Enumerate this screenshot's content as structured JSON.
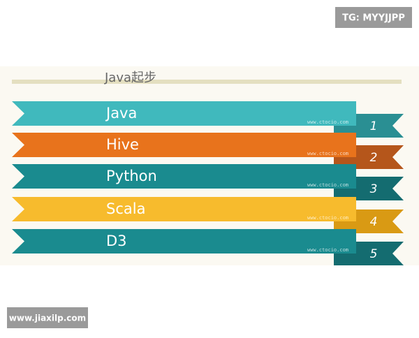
{
  "header": {
    "badge": "TG: MYYJJPP"
  },
  "diagram": {
    "title": "Java起步",
    "watermark": "www.ctocio.com",
    "items": [
      {
        "label": "Java",
        "number": "1",
        "color": "#40b9bd",
        "tab_color": "#2a8f93"
      },
      {
        "label": "Hive",
        "number": "2",
        "color": "#e8731c",
        "tab_color": "#b5561b"
      },
      {
        "label": "Python",
        "number": "3",
        "color": "#1a8b8f",
        "tab_color": "#146c70"
      },
      {
        "label": "Scala",
        "number": "4",
        "color": "#f7bb2d",
        "tab_color": "#d99a14"
      },
      {
        "label": "D3",
        "number": "5",
        "color": "#1a8b8f",
        "tab_color": "#146c70"
      }
    ]
  },
  "footer": {
    "badge": "www.jiaxilp.com"
  }
}
